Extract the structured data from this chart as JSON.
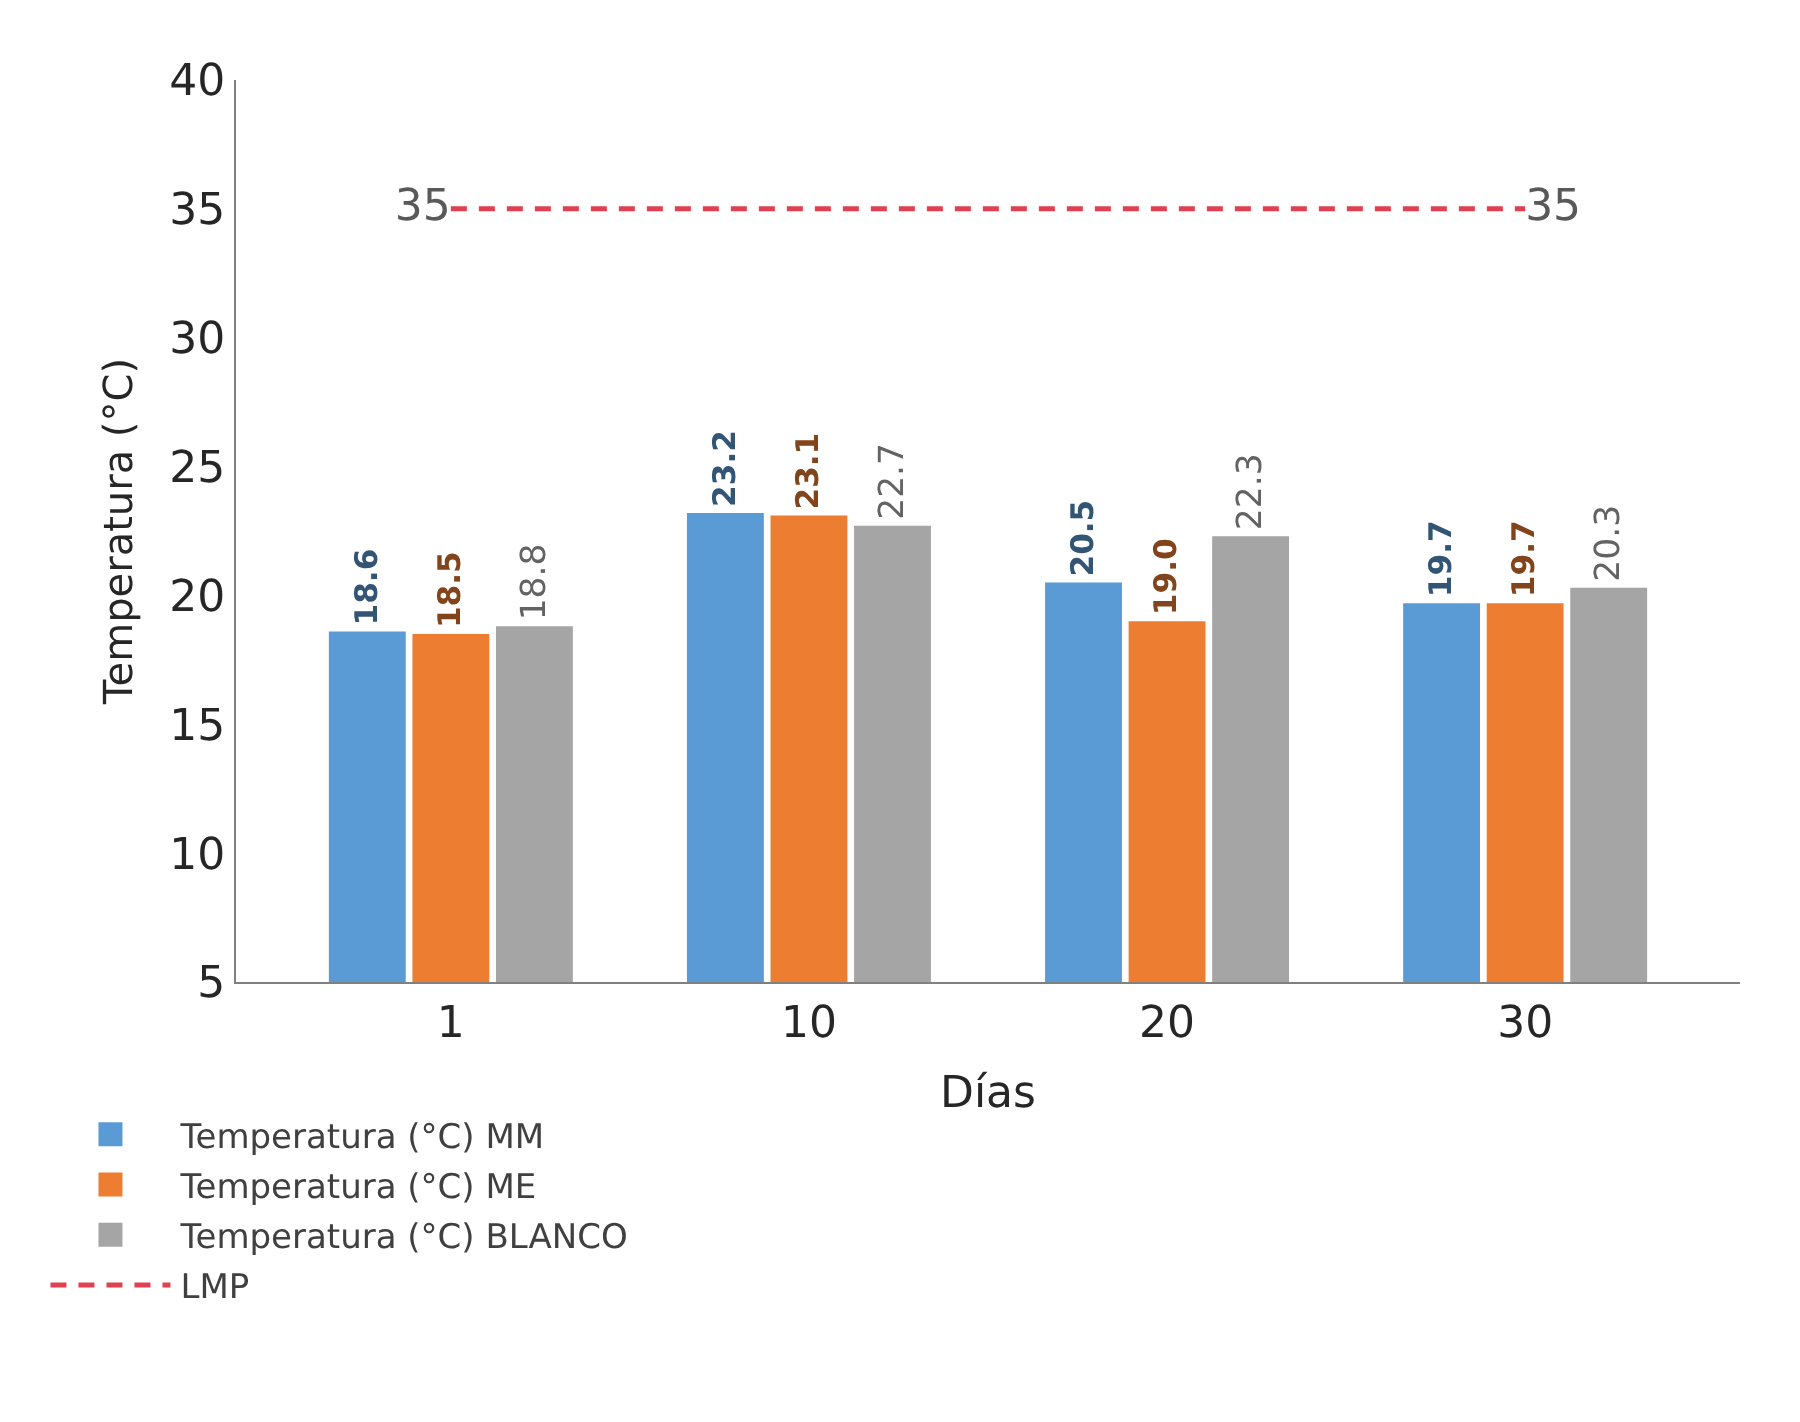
{
  "chart_data": {
    "type": "bar",
    "xlabel": "Días",
    "ylabel": "Temperatura (°C)",
    "categories": [
      "1",
      "10",
      "20",
      "30"
    ],
    "series": [
      {
        "name": "Temperatura (°C) MM",
        "color": "#5b9bd5",
        "values": [
          18.6,
          23.2,
          20.5,
          19.7
        ],
        "value_labels": [
          "18.6",
          "23.2",
          "20.5",
          "19.7"
        ]
      },
      {
        "name": "Temperatura (°C) ME",
        "color": "#ed7d31",
        "values": [
          18.5,
          23.1,
          19.0,
          19.7
        ],
        "value_labels": [
          "18.5",
          "23.1",
          "19.0",
          "19.7"
        ]
      },
      {
        "name": "Temperatura (°C) BLANCO",
        "color": "#a5a5a5",
        "values": [
          18.8,
          22.7,
          22.3,
          20.3
        ],
        "value_labels": [
          "18.8",
          "22.7",
          "22.3",
          "20.3"
        ]
      },
      {
        "name": "LMP",
        "type": "line",
        "line_style": "dashed",
        "color": "#e0404f",
        "values": [
          35,
          35,
          35,
          35
        ],
        "value_labels": [
          "35",
          null,
          null,
          "35"
        ]
      }
    ],
    "ylim": [
      5,
      40
    ],
    "yticks": [
      5,
      10,
      15,
      20,
      25,
      30,
      35,
      40
    ],
    "grid": false,
    "legend": "bottom left"
  }
}
